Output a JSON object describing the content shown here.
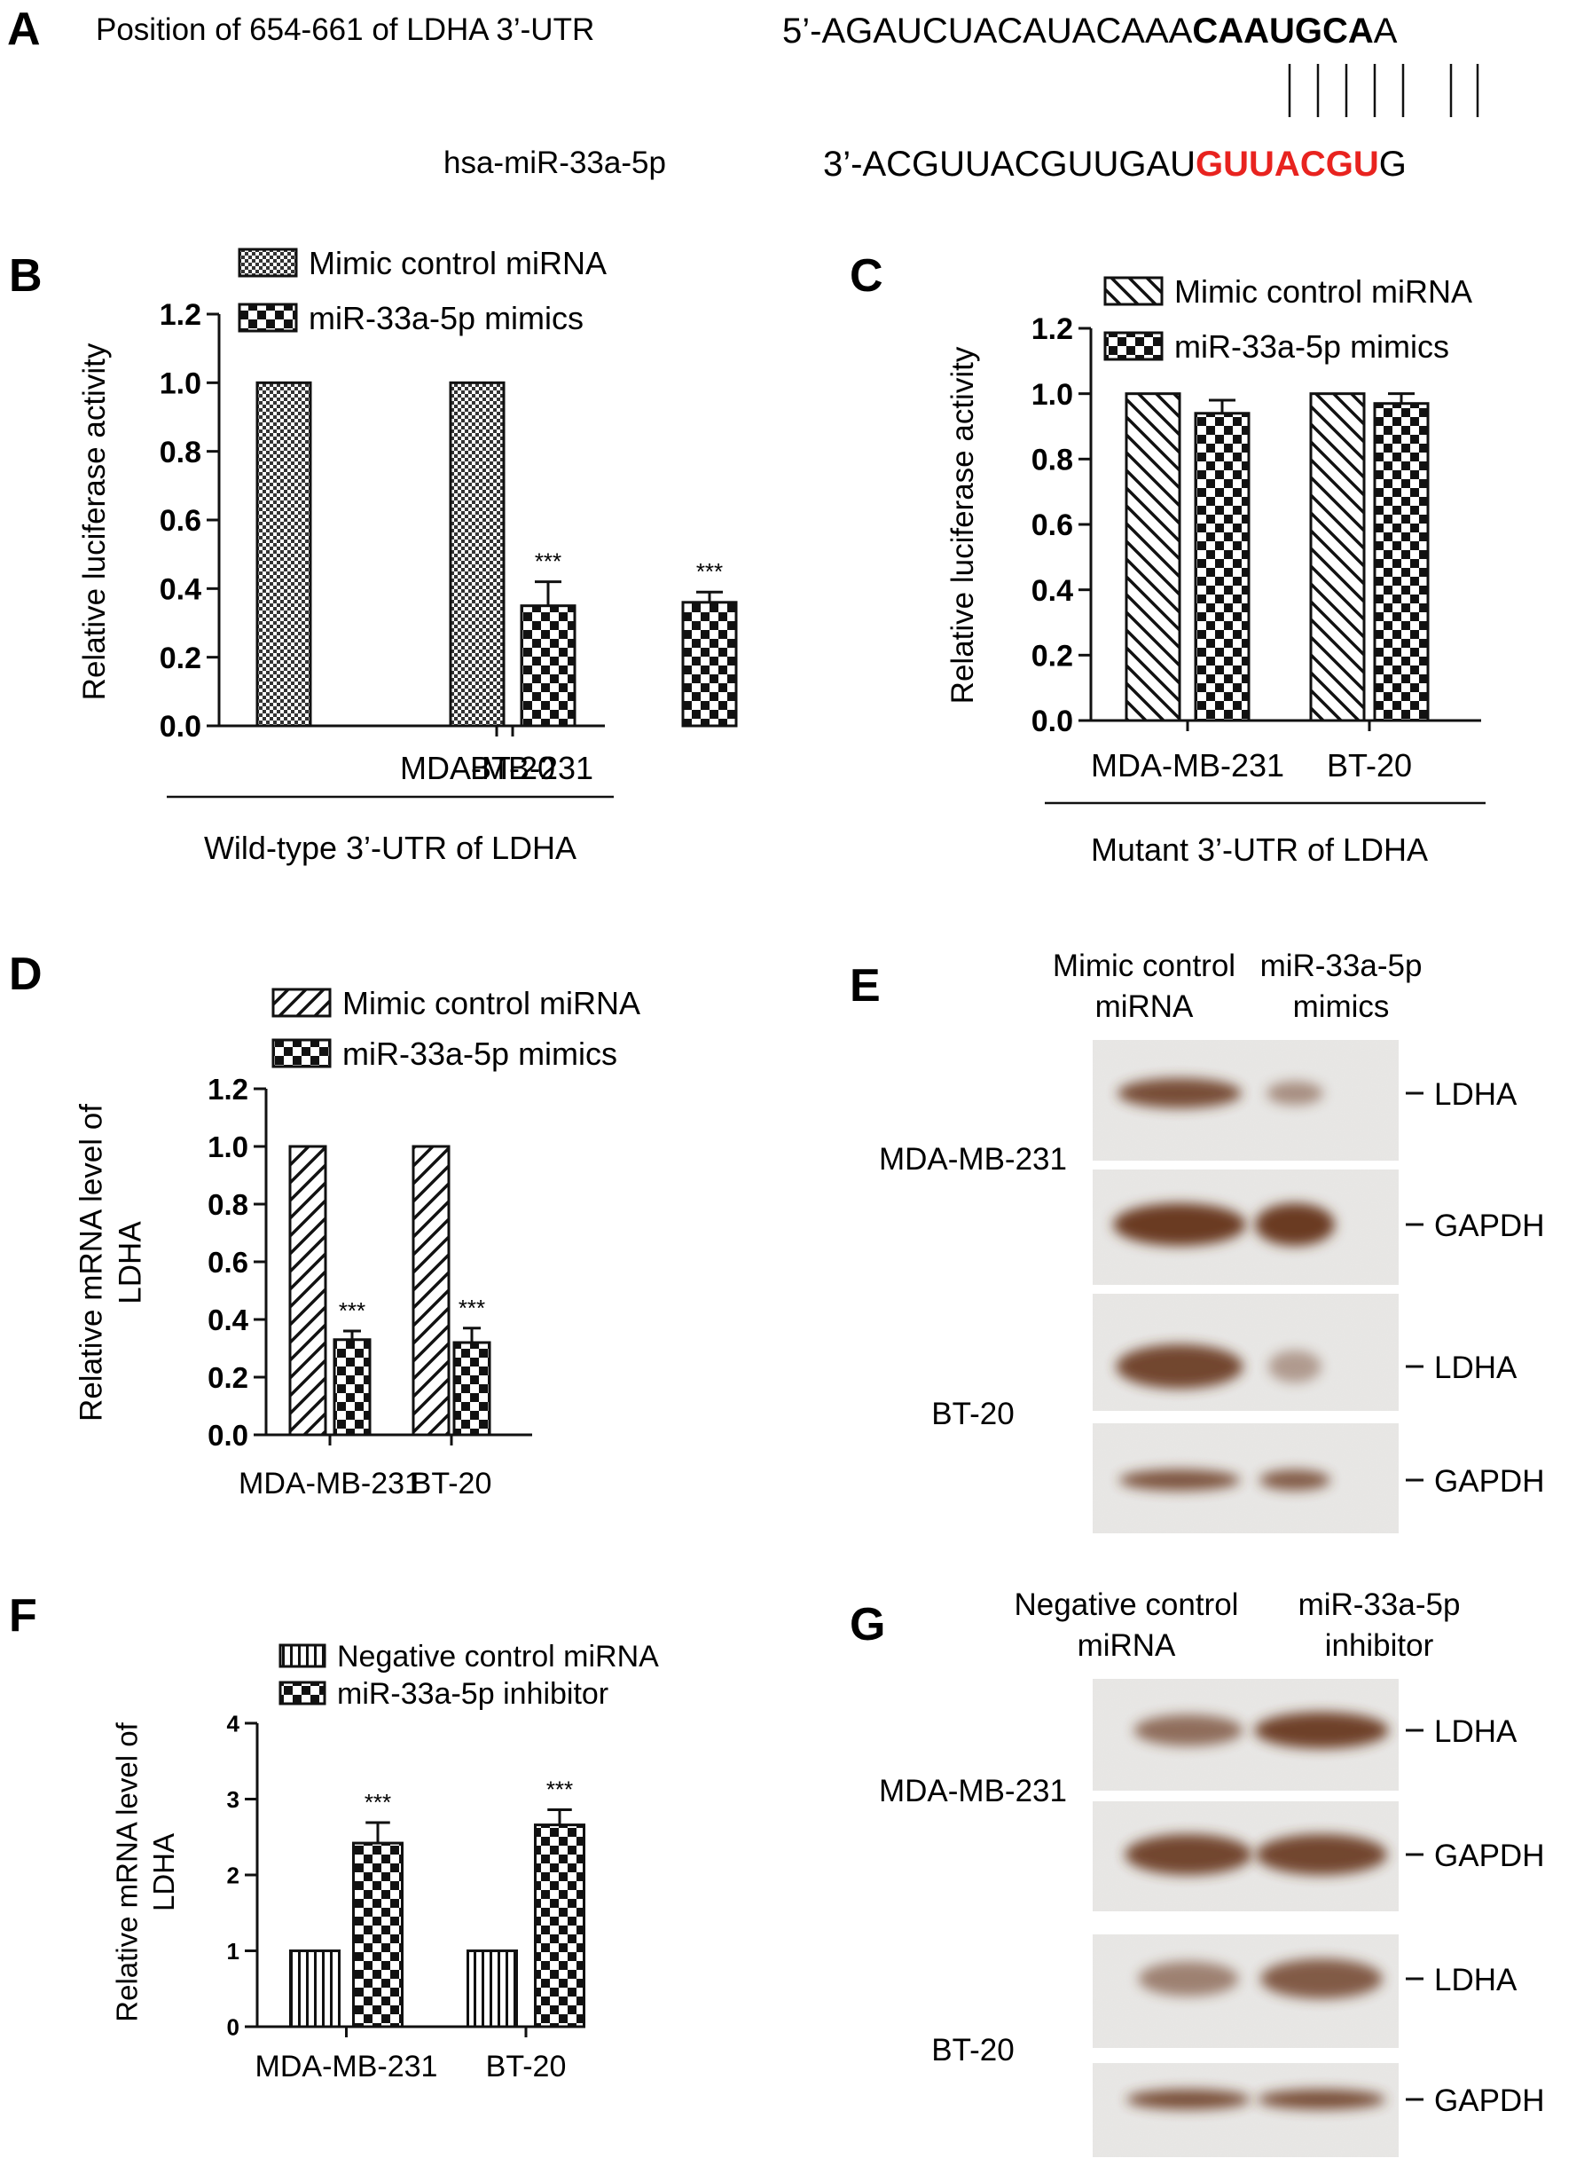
{
  "panel_a": {
    "letter": "A",
    "position_label": "Position of 654-661 of LDHA 3’-UTR",
    "mirna_label": "hsa-miR-33a-5p",
    "utr_prefix": "5’-AGAUCUACAUACAAA",
    "utr_seed": "CAAUGCA",
    "utr_suffix": "A",
    "mir_prefix": "3’-ACGUUACGUUGAU",
    "mir_seed": "GUUACGU",
    "mir_suffix": "G",
    "seed_color": "#e8231f"
  },
  "chart_data": [
    {
      "panel": "B",
      "type": "bar",
      "categories": [
        "MDA-MB-231",
        "BT-20"
      ],
      "series": [
        {
          "name": "Mimic control miRNA",
          "values": [
            1.0,
            1.0
          ],
          "errors": [
            0,
            0
          ],
          "pattern": "fine-check"
        },
        {
          "name": "miR-33a-5p mimics",
          "values": [
            0.36,
            0.35
          ],
          "errors": [
            0.03,
            0.07
          ],
          "pattern": "checker"
        }
      ],
      "significance": [
        "***",
        "***"
      ],
      "ylabel": [
        "Relative luciferase activity"
      ],
      "xlabel": "Wild-type 3’-UTR of LDHA",
      "ylim": [
        0,
        1.2
      ],
      "yticks": [
        "0.0",
        "0.2",
        "0.4",
        "0.6",
        "0.8",
        "1.0",
        "1.2"
      ],
      "legend": "top"
    },
    {
      "panel": "C",
      "type": "bar",
      "categories": [
        "MDA-MB-231",
        "BT-20"
      ],
      "series": [
        {
          "name": "Mimic control miRNA",
          "values": [
            1.0,
            1.0
          ],
          "errors": [
            0,
            0
          ],
          "pattern": "diag-back"
        },
        {
          "name": "miR-33a-5p mimics",
          "values": [
            0.94,
            0.97
          ],
          "errors": [
            0.04,
            0.03
          ],
          "pattern": "checker"
        }
      ],
      "significance": [
        "",
        ""
      ],
      "ylabel": [
        "Relative luciferase activity"
      ],
      "xlabel": "Mutant 3’-UTR of LDHA",
      "ylim": [
        0,
        1.2
      ],
      "yticks": [
        "0.0",
        "0.2",
        "0.4",
        "0.6",
        "0.8",
        "1.0",
        "1.2"
      ],
      "legend": "top"
    },
    {
      "panel": "D",
      "type": "bar",
      "categories": [
        "MDA-MB-231",
        "BT-20"
      ],
      "series": [
        {
          "name": "Mimic control miRNA",
          "values": [
            1.0,
            1.0
          ],
          "errors": [
            0,
            0
          ],
          "pattern": "diag-fwd"
        },
        {
          "name": "miR-33a-5p mimics",
          "values": [
            0.33,
            0.32
          ],
          "errors": [
            0.03,
            0.05
          ],
          "pattern": "checker"
        }
      ],
      "significance": [
        "***",
        "***"
      ],
      "ylabel": [
        "Relative mRNA level of",
        "LDHA"
      ],
      "xlabel": "",
      "ylim": [
        0,
        1.2
      ],
      "yticks": [
        "0.0",
        "0.2",
        "0.4",
        "0.6",
        "0.8",
        "1.0",
        "1.2"
      ],
      "legend": "top"
    },
    {
      "panel": "F",
      "type": "bar",
      "categories": [
        "MDA-MB-231",
        "BT-20"
      ],
      "series": [
        {
          "name": "Negative control miRNA",
          "values": [
            1.0,
            1.0
          ],
          "errors": [
            0,
            0
          ],
          "pattern": "vertical"
        },
        {
          "name": "miR-33a-5p inhibitor",
          "values": [
            2.42,
            2.66
          ],
          "errors": [
            0.27,
            0.2
          ],
          "pattern": "checker"
        }
      ],
      "significance": [
        "***",
        "***"
      ],
      "ylabel": [
        "Relative mRNA level of",
        "LDHA"
      ],
      "xlabel": "",
      "ylim": [
        0,
        4
      ],
      "yticks": [
        "0",
        "1",
        "2",
        "3",
        "4"
      ],
      "legend": "top"
    }
  ],
  "blot_e": {
    "letter": "E",
    "col_headers": [
      [
        "Mimic control",
        "miRNA"
      ],
      [
        "miR-33a-5p",
        "mimics"
      ]
    ],
    "cell_lines": [
      "MDA-MB-231",
      "BT-20"
    ],
    "bands": [
      "LDHA",
      "GAPDH",
      "LDHA",
      "GAPDH"
    ],
    "intensities": [
      [
        0.85,
        0.35
      ],
      [
        1.0,
        1.0
      ],
      [
        0.9,
        0.25
      ],
      [
        0.8,
        0.75
      ]
    ]
  },
  "blot_g": {
    "letter": "G",
    "col_headers": [
      [
        "Negative control",
        "miRNA"
      ],
      [
        "miR-33a-5p",
        "inhibitor"
      ]
    ],
    "cell_lines": [
      "MDA-MB-231",
      "BT-20"
    ],
    "bands": [
      "LDHA",
      "GAPDH",
      "LDHA",
      "GAPDH"
    ],
    "intensities": [
      [
        0.6,
        0.95
      ],
      [
        0.9,
        0.9
      ],
      [
        0.45,
        0.75
      ],
      [
        0.85,
        0.85
      ]
    ]
  },
  "colors": {
    "band": "#6b3a22",
    "blot_bg": "#e9e8e6",
    "text": "#111111"
  }
}
